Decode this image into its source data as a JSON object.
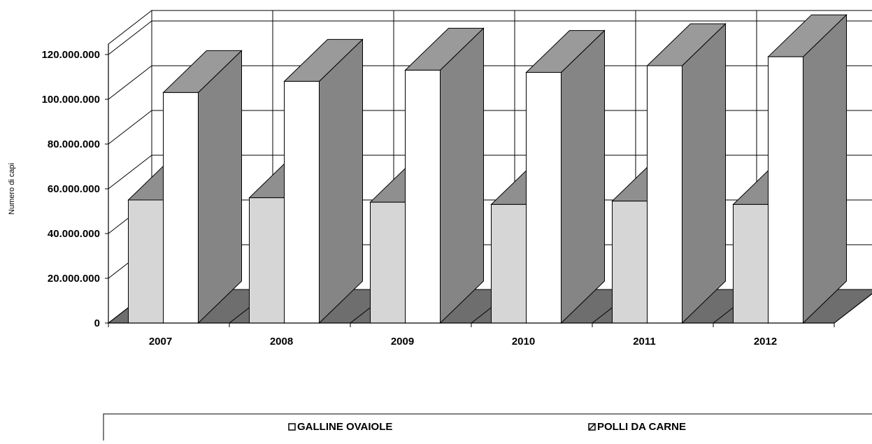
{
  "chart_data": {
    "type": "bar",
    "style": "3d-clustered-column",
    "categories": [
      "2007",
      "2008",
      "2009",
      "2010",
      "2011",
      "2012"
    ],
    "series": [
      {
        "name": "GALLINE OVAIOLE",
        "values": [
          55000000,
          56000000,
          54000000,
          53000000,
          54500000,
          53000000
        ],
        "front_color": "#d6d6d6",
        "top_color": "#8f8f8f",
        "side_color": "#7a7a7a"
      },
      {
        "name": "POLLI DA CARNE",
        "values": [
          103000000,
          108000000,
          113000000,
          112000000,
          115000000,
          119000000
        ],
        "front_color": "#ffffff",
        "top_color": "#9a9a9a",
        "side_color": "#858585"
      }
    ],
    "y_ticks": [
      "0",
      "20.000.000",
      "40.000.000",
      "60.000.000",
      "80.000.000",
      "100.000.000",
      "120.000.000"
    ],
    "ylabel": "Numero di capi",
    "xlabel": "",
    "ylim": [
      0,
      120000000
    ],
    "grid": true,
    "legend_position": "bottom"
  }
}
